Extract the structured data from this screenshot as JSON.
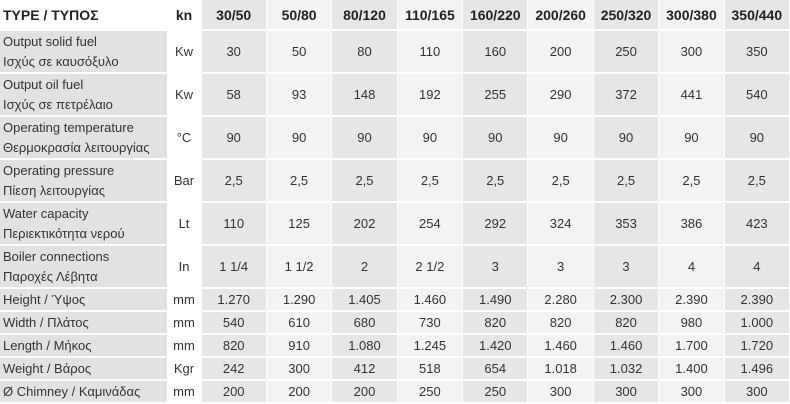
{
  "header": {
    "type": "TYPE / ΤΥΠΟΣ",
    "unit": "kn",
    "models": [
      "30/50",
      "50/80",
      "80/120",
      "110/165",
      "160/220",
      "200/260",
      "250/320",
      "300/380",
      "350/440"
    ]
  },
  "rows": [
    {
      "label": [
        "Output solid fuel",
        "Ισχύς σε καυσόξυλο"
      ],
      "unit": "Kw",
      "values": [
        "30",
        "50",
        "80",
        "110",
        "160",
        "200",
        "250",
        "300",
        "350"
      ]
    },
    {
      "label": [
        "Output oil fuel",
        "Ισχύς σε πετρέλαιο"
      ],
      "unit": "Kw",
      "values": [
        "58",
        "93",
        "148",
        "192",
        "255",
        "290",
        "372",
        "441",
        "540"
      ]
    },
    {
      "label": [
        "Operating temperature",
        "Θερμοκρασία λειτουργίας"
      ],
      "unit": "°C",
      "values": [
        "90",
        "90",
        "90",
        "90",
        "90",
        "90",
        "90",
        "90",
        "90"
      ]
    },
    {
      "label": [
        "Operating pressure",
        "Πίεση λειτουργίας"
      ],
      "unit": "Bar",
      "values": [
        "2,5",
        "2,5",
        "2,5",
        "2,5",
        "2,5",
        "2,5",
        "2,5",
        "2,5",
        "2,5"
      ]
    },
    {
      "label": [
        "Water capacity",
        "Περιεκτικότητα νερού"
      ],
      "unit": "Lt",
      "values": [
        "110",
        "125",
        "202",
        "254",
        "292",
        "324",
        "353",
        "386",
        "423"
      ]
    },
    {
      "label": [
        "Boiler connections",
        "Παροχές Λέβητα"
      ],
      "unit": "In",
      "values": [
        "1 1/4",
        "1 1/2",
        "2",
        "2 1/2",
        "3",
        "3",
        "3",
        "4",
        "4"
      ]
    },
    {
      "label": [
        "Height  /  Ύψος"
      ],
      "unit": "mm",
      "values": [
        "1.270",
        "1.290",
        "1.405",
        "1.460",
        "1.490",
        "2.280",
        "2.300",
        "2.390",
        "2.390"
      ]
    },
    {
      "label": [
        "Width  /  Πλάτος"
      ],
      "unit": "mm",
      "values": [
        "540",
        "610",
        "680",
        "730",
        "820",
        "820",
        "820",
        "980",
        "1.000"
      ]
    },
    {
      "label": [
        "Length / Μήκος"
      ],
      "unit": "mm",
      "values": [
        "820",
        "910",
        "1.080",
        "1.245",
        "1.420",
        "1.460",
        "1.460",
        "1.700",
        "1.720"
      ]
    },
    {
      "label": [
        "Weight / Βάρος"
      ],
      "unit": "Kgr",
      "values": [
        "242",
        "300",
        "412",
        "518",
        "654",
        "1.018",
        "1.032",
        "1.400",
        "1.496"
      ]
    },
    {
      "label": [
        "Ø Chimney / Καμινάδας"
      ],
      "unit": "mm",
      "values": [
        "200",
        "200",
        "200",
        "250",
        "250",
        "300",
        "300",
        "300",
        "300"
      ]
    }
  ]
}
